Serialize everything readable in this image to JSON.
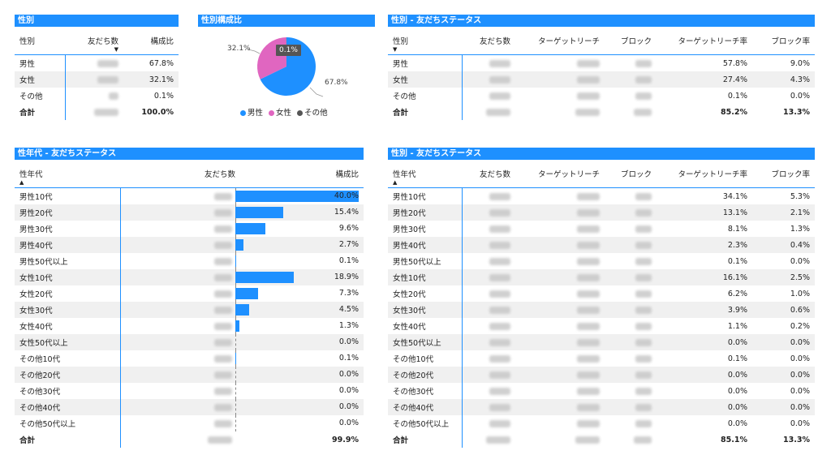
{
  "colors": {
    "accent": "#1e90ff",
    "male": "#1e90ff",
    "female": "#e066c0",
    "other": "#555555"
  },
  "gender_table": {
    "title": "性別",
    "headers": [
      "性別",
      "友だち数",
      "構成比"
    ],
    "rows": [
      {
        "label": "男性",
        "ratio": "67.8%"
      },
      {
        "label": "女性",
        "ratio": "32.1%"
      },
      {
        "label": "その他",
        "ratio": "0.1%"
      }
    ],
    "total": {
      "label": "合計",
      "ratio": "100.0%"
    }
  },
  "pie": {
    "title": "性別構成比",
    "labels": {
      "female": "32.1%",
      "male": "67.8%",
      "other": "0.1%"
    },
    "legend": [
      "男性",
      "女性",
      "その他"
    ]
  },
  "chart_data": {
    "type": "pie",
    "categories": [
      "男性",
      "女性",
      "その他"
    ],
    "values": [
      67.8,
      32.1,
      0.1
    ],
    "title": "性別構成比"
  },
  "gender_status": {
    "title": "性別 - 友だちステータス",
    "headers": [
      "性別",
      "友だち数",
      "ターゲットリーチ",
      "ブロック",
      "ターゲットリーチ率",
      "ブロック率"
    ],
    "rows": [
      {
        "label": "男性",
        "reach_rate": "57.8%",
        "block_rate": "9.0%"
      },
      {
        "label": "女性",
        "reach_rate": "27.4%",
        "block_rate": "4.3%"
      },
      {
        "label": "その他",
        "reach_rate": "0.1%",
        "block_rate": "0.0%"
      }
    ],
    "total": {
      "label": "合計",
      "reach_rate": "85.2%",
      "block_rate": "13.3%"
    }
  },
  "age_table": {
    "title": "性年代 - 友だちステータス",
    "headers": [
      "性年代",
      "友だち数",
      "構成比"
    ],
    "rows": [
      {
        "label": "男性10代",
        "ratio": "40.0%",
        "value": 40.0
      },
      {
        "label": "男性20代",
        "ratio": "15.4%",
        "value": 15.4
      },
      {
        "label": "男性30代",
        "ratio": "9.6%",
        "value": 9.6
      },
      {
        "label": "男性40代",
        "ratio": "2.7%",
        "value": 2.7
      },
      {
        "label": "男性50代以上",
        "ratio": "0.1%",
        "value": 0.1
      },
      {
        "label": "女性10代",
        "ratio": "18.9%",
        "value": 18.9
      },
      {
        "label": "女性20代",
        "ratio": "7.3%",
        "value": 7.3
      },
      {
        "label": "女性30代",
        "ratio": "4.5%",
        "value": 4.5
      },
      {
        "label": "女性40代",
        "ratio": "1.3%",
        "value": 1.3
      },
      {
        "label": "女性50代以上",
        "ratio": "0.0%",
        "value": 0.0
      },
      {
        "label": "その他10代",
        "ratio": "0.1%",
        "value": 0.1
      },
      {
        "label": "その他20代",
        "ratio": "0.0%",
        "value": 0.0
      },
      {
        "label": "その他30代",
        "ratio": "0.0%",
        "value": 0.0
      },
      {
        "label": "その他40代",
        "ratio": "0.0%",
        "value": 0.0
      },
      {
        "label": "その他50代以上",
        "ratio": "0.0%",
        "value": 0.0
      }
    ],
    "total": {
      "label": "合計",
      "ratio": "99.9%"
    }
  },
  "age_status": {
    "title": "性別 - 友だちステータス",
    "headers": [
      "性年代",
      "友だち数",
      "ターゲットリーチ",
      "ブロック",
      "ターゲットリーチ率",
      "ブロック率"
    ],
    "rows": [
      {
        "label": "男性10代",
        "reach_rate": "34.1%",
        "block_rate": "5.3%"
      },
      {
        "label": "男性20代",
        "reach_rate": "13.1%",
        "block_rate": "2.1%"
      },
      {
        "label": "男性30代",
        "reach_rate": "8.1%",
        "block_rate": "1.3%"
      },
      {
        "label": "男性40代",
        "reach_rate": "2.3%",
        "block_rate": "0.4%"
      },
      {
        "label": "男性50代以上",
        "reach_rate": "0.1%",
        "block_rate": "0.0%"
      },
      {
        "label": "女性10代",
        "reach_rate": "16.1%",
        "block_rate": "2.5%"
      },
      {
        "label": "女性20代",
        "reach_rate": "6.2%",
        "block_rate": "1.0%"
      },
      {
        "label": "女性30代",
        "reach_rate": "3.9%",
        "block_rate": "0.6%"
      },
      {
        "label": "女性40代",
        "reach_rate": "1.1%",
        "block_rate": "0.2%"
      },
      {
        "label": "女性50代以上",
        "reach_rate": "0.0%",
        "block_rate": "0.0%"
      },
      {
        "label": "その他10代",
        "reach_rate": "0.1%",
        "block_rate": "0.0%"
      },
      {
        "label": "その他20代",
        "reach_rate": "0.0%",
        "block_rate": "0.0%"
      },
      {
        "label": "その他30代",
        "reach_rate": "0.0%",
        "block_rate": "0.0%"
      },
      {
        "label": "その他40代",
        "reach_rate": "0.0%",
        "block_rate": "0.0%"
      },
      {
        "label": "その他50代以上",
        "reach_rate": "0.0%",
        "block_rate": "0.0%"
      }
    ],
    "total": {
      "label": "合計",
      "reach_rate": "85.1%",
      "block_rate": "13.3%"
    }
  }
}
